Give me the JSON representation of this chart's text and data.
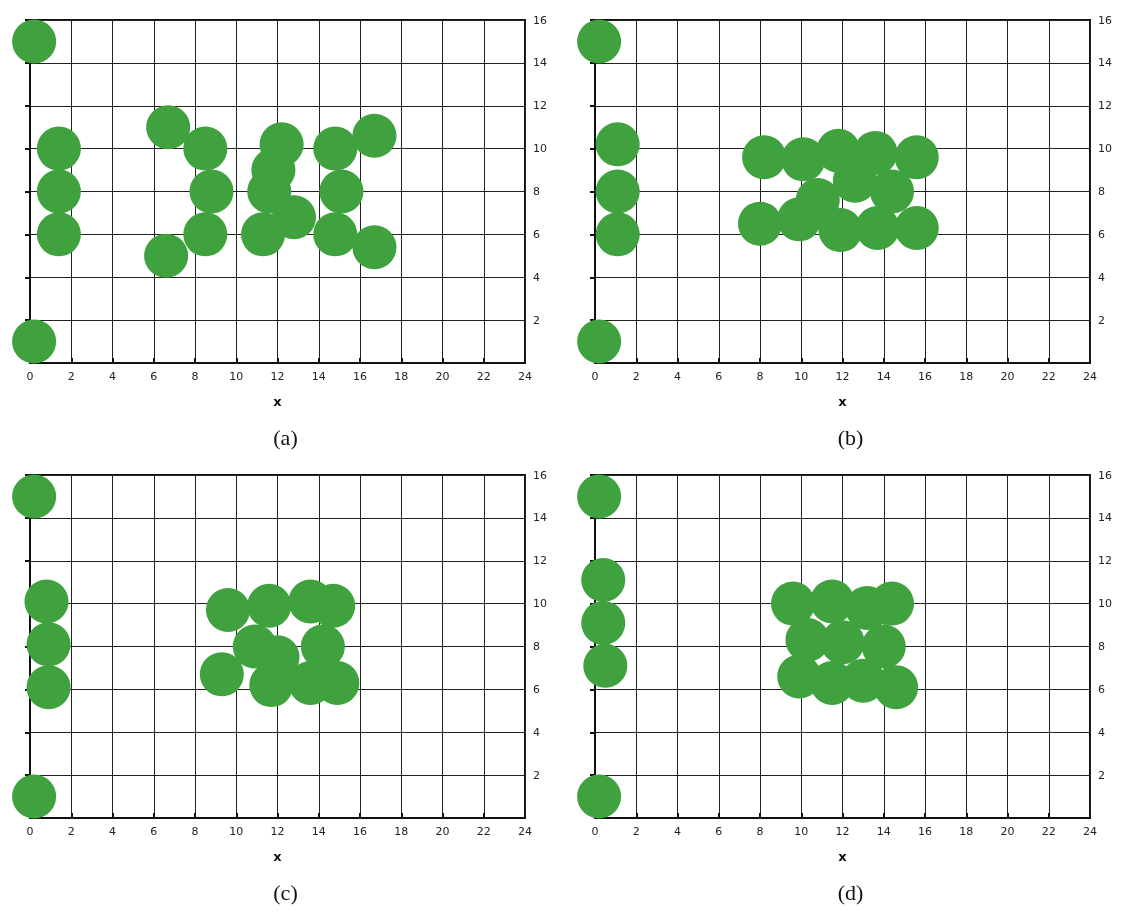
{
  "chart_data": [
    {
      "type": "scatter",
      "title": "(a)",
      "xlabel": "x",
      "xlim": [
        0,
        24
      ],
      "xticks": [
        0,
        2,
        4,
        6,
        8,
        10,
        12,
        14,
        16,
        18,
        20,
        22,
        24
      ],
      "ylim": [
        0,
        16
      ],
      "yticks": [
        2,
        4,
        6,
        8,
        10,
        12,
        14,
        16
      ],
      "grid": true,
      "marker": "circle",
      "series": [
        {
          "color": "#3fa23f",
          "x": [
            0.2,
            0.2,
            1.4,
            1.4,
            1.4,
            6.7,
            6.6,
            8.5,
            8.8,
            8.5,
            12.2,
            11.8,
            11.6,
            12.8,
            11.3,
            14.8,
            15.1,
            14.8,
            16.7,
            16.7
          ],
          "values": [
            15,
            1,
            10,
            8,
            6,
            11,
            5,
            10,
            8,
            6,
            10.2,
            9,
            8,
            6.8,
            6,
            10,
            8,
            6,
            10.6,
            5.4
          ]
        }
      ]
    },
    {
      "type": "scatter",
      "title": "(b)",
      "xlabel": "x",
      "xlim": [
        0,
        24
      ],
      "xticks": [
        0,
        2,
        4,
        6,
        8,
        10,
        12,
        14,
        16,
        18,
        20,
        22,
        24
      ],
      "ylim": [
        0,
        16
      ],
      "yticks": [
        2,
        4,
        6,
        8,
        10,
        12,
        14,
        16
      ],
      "grid": true,
      "marker": "circle",
      "series": [
        {
          "color": "#3fa23f",
          "x": [
            0.2,
            0.2,
            1.1,
            1.1,
            1.1,
            8.2,
            10.1,
            11.8,
            13.6,
            15.6,
            10.8,
            12.6,
            14.4,
            8,
            9.9,
            11.9,
            13.7,
            15.6
          ],
          "values": [
            15,
            1,
            10.2,
            8,
            6,
            9.6,
            9.5,
            9.9,
            9.8,
            9.6,
            7.6,
            8.5,
            8,
            6.5,
            6.7,
            6.2,
            6.3,
            6.3
          ]
        }
      ]
    },
    {
      "type": "scatter",
      "title": "(c)",
      "xlabel": "x",
      "xlim": [
        0,
        24
      ],
      "xticks": [
        0,
        2,
        4,
        6,
        8,
        10,
        12,
        14,
        16,
        18,
        20,
        22,
        24
      ],
      "ylim": [
        0,
        16
      ],
      "yticks": [
        2,
        4,
        6,
        8,
        10,
        12,
        14,
        16
      ],
      "grid": true,
      "marker": "circle",
      "series": [
        {
          "color": "#3fa23f",
          "x": [
            0.2,
            0.2,
            0.8,
            0.9,
            0.9,
            9.6,
            11.6,
            13.6,
            14.7,
            10.9,
            14.2,
            9.3,
            11.7,
            13.6,
            14.9,
            12
          ],
          "values": [
            15,
            1,
            10.1,
            8.1,
            6.1,
            9.7,
            9.9,
            10.1,
            9.9,
            8,
            8,
            6.7,
            6.2,
            6.3,
            6.3,
            7.5
          ]
        }
      ]
    },
    {
      "type": "scatter",
      "title": "(d)",
      "xlabel": "x",
      "xlim": [
        0,
        24
      ],
      "xticks": [
        0,
        2,
        4,
        6,
        8,
        10,
        12,
        14,
        16,
        18,
        20,
        22,
        24
      ],
      "ylim": [
        0,
        16
      ],
      "yticks": [
        2,
        4,
        6,
        8,
        10,
        12,
        14,
        16
      ],
      "grid": true,
      "marker": "circle",
      "series": [
        {
          "color": "#3fa23f",
          "x": [
            0.2,
            0.2,
            0.4,
            0.4,
            0.5,
            9.6,
            11.5,
            13.2,
            14.4,
            10.3,
            12,
            14,
            9.9,
            11.5,
            13,
            14.6
          ],
          "values": [
            15,
            1,
            11.1,
            9.1,
            7.1,
            10,
            10.1,
            9.8,
            10,
            8.3,
            8.2,
            8,
            6.6,
            6.3,
            6.4,
            6.1
          ]
        }
      ]
    }
  ]
}
